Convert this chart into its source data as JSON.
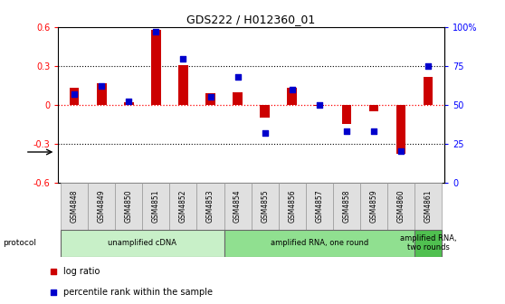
{
  "title": "GDS222 / H012360_01",
  "samples": [
    "GSM4848",
    "GSM4849",
    "GSM4850",
    "GSM4851",
    "GSM4852",
    "GSM4853",
    "GSM4854",
    "GSM4855",
    "GSM4856",
    "GSM4857",
    "GSM4858",
    "GSM4859",
    "GSM4860",
    "GSM4861"
  ],
  "log_ratio": [
    0.13,
    0.17,
    0.02,
    0.58,
    0.31,
    0.09,
    0.1,
    -0.1,
    0.13,
    -0.01,
    -0.15,
    -0.05,
    -0.38,
    0.22
  ],
  "percentile_rank": [
    57,
    62,
    52,
    97,
    80,
    55,
    68,
    32,
    60,
    50,
    33,
    33,
    20,
    75
  ],
  "bar_color": "#cc0000",
  "dot_color": "#0000cc",
  "ylim_left": [
    -0.6,
    0.6
  ],
  "ylim_right": [
    0,
    100
  ],
  "yticks_left": [
    -0.6,
    -0.3,
    0.0,
    0.3,
    0.6
  ],
  "yticks_right": [
    0,
    25,
    50,
    75,
    100
  ],
  "ytick_labels_right": [
    "0",
    "25",
    "50",
    "75",
    "100%"
  ],
  "protocols": [
    {
      "label": "unamplified cDNA",
      "start": 0,
      "end": 5,
      "color": "#c8f0c8"
    },
    {
      "label": "amplified RNA, one round",
      "start": 6,
      "end": 12,
      "color": "#90e090"
    },
    {
      "label": "amplified RNA,\ntwo rounds",
      "start": 13,
      "end": 13,
      "color": "#50c050"
    }
  ],
  "protocol_label": "protocol",
  "legend_items": [
    {
      "label": "log ratio",
      "color": "#cc0000"
    },
    {
      "label": "percentile rank within the sample",
      "color": "#0000cc"
    }
  ],
  "bar_width": 0.35,
  "dot_size": 22
}
